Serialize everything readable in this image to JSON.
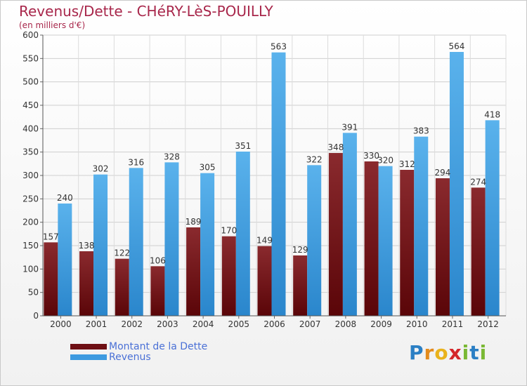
{
  "chart_data": {
    "type": "bar",
    "title": "Revenus/Dette - CHéRY-LèS-POUILLY",
    "subtitle": "(en milliers d'€)",
    "categories": [
      "2000",
      "2001",
      "2002",
      "2003",
      "2004",
      "2005",
      "2006",
      "2007",
      "2008",
      "2009",
      "2010",
      "2011",
      "2012"
    ],
    "series": [
      {
        "name": "Montant de la Dette",
        "color": "#6e0f14",
        "values": [
          157,
          138,
          122,
          106,
          189,
          170,
          149,
          129,
          348,
          330,
          312,
          294,
          274
        ]
      },
      {
        "name": "Revenus",
        "color": "#3d9ae0",
        "values": [
          240,
          302,
          316,
          328,
          305,
          351,
          563,
          322,
          391,
          320,
          383,
          564,
          418
        ]
      }
    ],
    "ylim": [
      0,
      600
    ],
    "yticks": [
      0,
      50,
      100,
      150,
      200,
      250,
      300,
      350,
      400,
      450,
      500,
      550,
      600
    ],
    "grid": true,
    "legend": "bottom-left"
  },
  "brand": {
    "letters": [
      "P",
      "r",
      "o",
      "x",
      "i",
      "t",
      "i"
    ],
    "colors": [
      "#2b7fc4",
      "#e38b1c",
      "#e9b21c",
      "#d4262a",
      "#7ab834",
      "#2b7fc4",
      "#7ab834"
    ]
  }
}
